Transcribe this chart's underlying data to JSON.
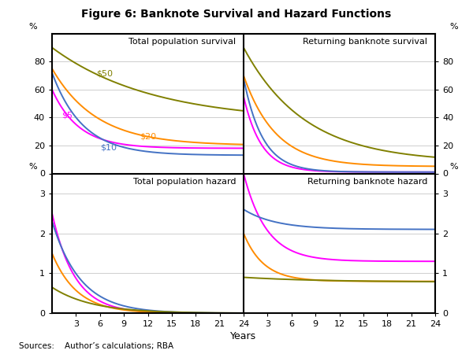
{
  "title": "Figure 6: Banknote Survival and Hazard Functions",
  "xlabel": "Years",
  "sources": "Sources:    Author’s calculations; RBA",
  "colors": {
    "$5": "#ff00ff",
    "$10": "#4472c4",
    "$20": "#ff8c00",
    "$50": "#808000"
  },
  "survival_yticks": [
    0,
    20,
    40,
    60,
    80
  ],
  "hazard_yticks": [
    0,
    1,
    2,
    3
  ],
  "xticks": [
    3,
    6,
    9,
    12,
    15,
    18,
    21,
    24
  ],
  "subplot_labels": {
    "tl": "Total population survival",
    "tr": "Returning banknote survival",
    "bl": "Total population hazard",
    "br": "Returning banknote hazard"
  }
}
